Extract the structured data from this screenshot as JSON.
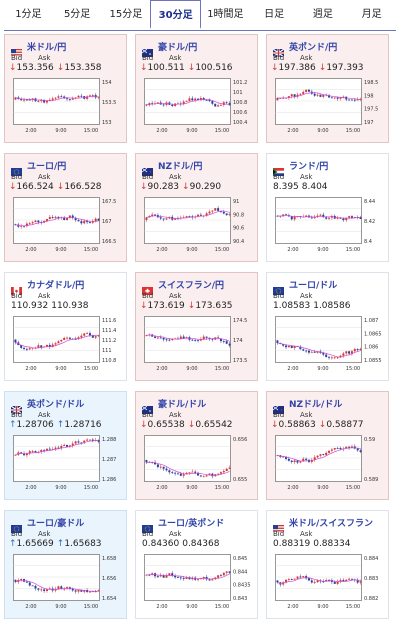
{
  "tabs": [
    "1分足",
    "5分足",
    "15分足",
    "30分足",
    "1時間足",
    "日足",
    "週足",
    "月足"
  ],
  "active_tab": 3,
  "colors": {
    "tab_active": "#1a2e8c",
    "pink_bg": "#fbeeee",
    "blue_bg": "#eaf4fc",
    "down": "#d23a3a",
    "up": "#2e6cc8",
    "ma": "#d44ad4"
  },
  "labels": {
    "bid": "Bid",
    "ask": "Ask"
  },
  "cards": [
    {
      "name": "米ドル/円",
      "flag": "us",
      "bg": "pink",
      "dir": "down",
      "bid": "153.356",
      "ask": "153.358",
      "yticks": [
        "154",
        "153.5",
        "153"
      ],
      "xticks": [
        "2:00",
        "9:00",
        "15:00"
      ]
    },
    {
      "name": "豪ドル/円",
      "flag": "au",
      "bg": "pink",
      "dir": "down",
      "bid": "100.511",
      "ask": "100.516",
      "yticks": [
        "101.2",
        "101",
        "100.8",
        "100.6",
        "100.4"
      ],
      "xticks": [
        "2:00",
        "9:00",
        "15:00"
      ]
    },
    {
      "name": "英ポンド/円",
      "flag": "gb",
      "bg": "pink",
      "dir": "down",
      "bid": "197.386",
      "ask": "197.393",
      "yticks": [
        "198.5",
        "198",
        "197.5",
        "197"
      ],
      "xticks": [
        "2:00",
        "9:00",
        "15:00"
      ]
    },
    {
      "name": "ユーロ/円",
      "flag": "eu",
      "bg": "pink",
      "dir": "down",
      "bid": "166.524",
      "ask": "166.528",
      "yticks": [
        "167.5",
        "167",
        "166.5"
      ],
      "xticks": [
        "2:00",
        "9:00",
        "15:00"
      ]
    },
    {
      "name": "NZドル/円",
      "flag": "nz",
      "bg": "pink",
      "dir": "down",
      "bid": "90.283",
      "ask": "90.290",
      "yticks": [
        "91",
        "90.8",
        "90.6",
        "90.4"
      ],
      "xticks": [
        "2:00",
        "9:00",
        "15:00"
      ]
    },
    {
      "name": "ランド/円",
      "flag": "za",
      "bg": "white",
      "dir": "none",
      "bid": "8.395",
      "ask": "8.404",
      "yticks": [
        "8.44",
        "8.42",
        "8.4"
      ],
      "xticks": [
        "2:00",
        "9:00",
        "15:00"
      ]
    },
    {
      "name": "カナダドル/円",
      "flag": "ca",
      "bg": "white",
      "dir": "none",
      "bid": "110.932",
      "ask": "110.938",
      "yticks": [
        "111.6",
        "111.4",
        "111.2",
        "111",
        "110.8"
      ],
      "xticks": [
        "2:00",
        "9:00",
        "15:00"
      ]
    },
    {
      "name": "スイスフラン/円",
      "flag": "ch",
      "bg": "pink",
      "dir": "down",
      "bid": "173.619",
      "ask": "173.635",
      "yticks": [
        "174.5",
        "174",
        "173.5"
      ],
      "xticks": [
        "2:00",
        "9:00",
        "15:00"
      ]
    },
    {
      "name": "ユーロ/ドル",
      "flag": "eu",
      "bg": "white",
      "dir": "none",
      "bid": "1.08583",
      "ask": "1.08586",
      "yticks": [
        "1.087",
        "1.0865",
        "1.086",
        "1.0855"
      ],
      "xticks": [
        "2:00",
        "9:00",
        "15:00"
      ]
    },
    {
      "name": "英ポンド/ドル",
      "flag": "gb",
      "bg": "blue",
      "dir": "up",
      "bid": "1.28706",
      "ask": "1.28716",
      "yticks": [
        "1.288",
        "1.287",
        "1.286"
      ],
      "xticks": [
        "2:00",
        "9:00",
        "15:00"
      ]
    },
    {
      "name": "豪ドル/ドル",
      "flag": "au",
      "bg": "pink",
      "dir": "down",
      "bid": "0.65538",
      "ask": "0.65542",
      "yticks": [
        "0.656",
        "0.655"
      ],
      "xticks": [
        "2:00",
        "9:00",
        "15:00"
      ]
    },
    {
      "name": "NZドル/ドル",
      "flag": "nz",
      "bg": "pink",
      "dir": "down",
      "bid": "0.58863",
      "ask": "0.58877",
      "yticks": [
        "0.59",
        "0.589"
      ],
      "xticks": [
        "2:00",
        "9:00",
        "15:00"
      ]
    },
    {
      "name": "ユーロ/豪ドル",
      "flag": "eu",
      "bg": "blue",
      "dir": "up",
      "bid": "1.65669",
      "ask": "1.65683",
      "yticks": [
        "1.658",
        "1.656",
        "1.654"
      ],
      "xticks": [
        "2:00",
        "9:00",
        "15:00"
      ]
    },
    {
      "name": "ユーロ/英ポンド",
      "flag": "eu",
      "bg": "white",
      "dir": "none",
      "bid": "0.84360",
      "ask": "0.84368",
      "yticks": [
        "0.845",
        "0.844",
        "0.8435",
        "0.843"
      ],
      "xticks": [
        "2:00",
        "9:00",
        "15:00"
      ]
    },
    {
      "name": "米ドル/スイスフラン",
      "flag": "us",
      "bg": "white",
      "dir": "none",
      "bid": "0.88319",
      "ask": "0.88334",
      "yticks": [
        "0.884",
        "0.883",
        "0.882"
      ],
      "xticks": [
        "2:00",
        "9:00",
        "15:00"
      ]
    }
  ]
}
